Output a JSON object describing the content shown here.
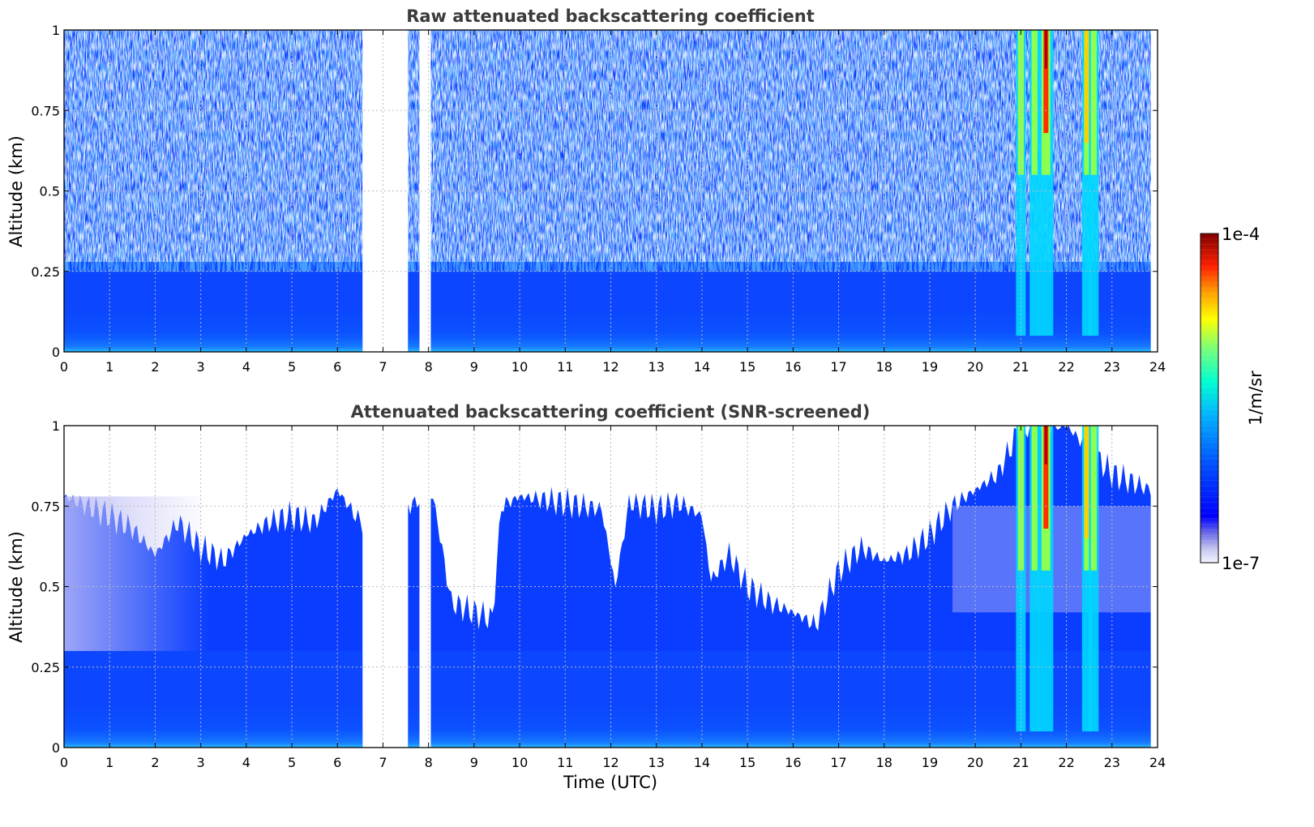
{
  "chart_data": [
    {
      "type": "heatmap",
      "title": "Raw attenuated backscattering coefficient",
      "xlabel": "",
      "ylabel": "Altitude (km)",
      "xlim": [
        0,
        24
      ],
      "ylim": [
        0,
        1
      ],
      "x_ticks": [
        "0",
        "1",
        "2",
        "3",
        "4",
        "5",
        "6",
        "7",
        "8",
        "9",
        "10",
        "11",
        "12",
        "13",
        "14",
        "15",
        "16",
        "17",
        "18",
        "19",
        "20",
        "21",
        "22",
        "23",
        "24"
      ],
      "y_ticks": [
        "0",
        "0.25",
        "0.5",
        "0.75",
        "1"
      ],
      "grid": true,
      "data_gaps": [
        [
          6.55,
          7.55
        ],
        [
          7.8,
          8.05
        ]
      ],
      "high_backscatter_columns_utc": [
        21.0,
        21.3,
        21.55,
        22.45,
        22.6
      ],
      "note_pattern": "noisy low values above ~0.3 km, denser signal near surface"
    },
    {
      "type": "heatmap",
      "title": "Attenuated backscattering coefficient (SNR-screened)",
      "xlabel": "Time (UTC)",
      "ylabel": "Altitude (km)",
      "xlim": [
        0,
        24
      ],
      "ylim": [
        0,
        1
      ],
      "x_ticks": [
        "0",
        "1",
        "2",
        "3",
        "4",
        "5",
        "6",
        "7",
        "8",
        "9",
        "10",
        "11",
        "12",
        "13",
        "14",
        "15",
        "16",
        "17",
        "18",
        "19",
        "20",
        "21",
        "22",
        "23",
        "24"
      ],
      "y_ticks": [
        "0",
        "0.25",
        "0.5",
        "0.75",
        "1"
      ],
      "grid": true,
      "data_gaps": [
        [
          6.55,
          7.55
        ],
        [
          7.8,
          8.05
        ]
      ],
      "high_backscatter_columns_utc": [
        21.0,
        21.3,
        21.55,
        22.45,
        22.6
      ],
      "screened_top_km": [
        [
          0,
          0.78
        ],
        [
          0.5,
          0.75
        ],
        [
          1,
          0.72
        ],
        [
          1.5,
          0.68
        ],
        [
          2,
          0.6
        ],
        [
          2.5,
          0.7
        ],
        [
          3,
          0.62
        ],
        [
          3.5,
          0.58
        ],
        [
          4,
          0.66
        ],
        [
          4.5,
          0.7
        ],
        [
          5,
          0.72
        ],
        [
          5.5,
          0.7
        ],
        [
          6,
          0.8
        ],
        [
          6.5,
          0.7
        ],
        [
          8.1,
          0.78
        ],
        [
          8.5,
          0.45
        ],
        [
          9.0,
          0.42
        ],
        [
          9.4,
          0.4
        ],
        [
          9.6,
          0.75
        ],
        [
          10,
          0.78
        ],
        [
          11,
          0.76
        ],
        [
          11.8,
          0.74
        ],
        [
          12.1,
          0.5
        ],
        [
          12.4,
          0.76
        ],
        [
          13,
          0.74
        ],
        [
          13.5,
          0.76
        ],
        [
          14,
          0.72
        ],
        [
          14.2,
          0.52
        ],
        [
          14.6,
          0.6
        ],
        [
          15,
          0.5
        ],
        [
          15.5,
          0.45
        ],
        [
          16,
          0.42
        ],
        [
          16.5,
          0.38
        ],
        [
          17,
          0.55
        ],
        [
          17.5,
          0.62
        ],
        [
          18,
          0.58
        ],
        [
          18.5,
          0.6
        ],
        [
          19,
          0.66
        ],
        [
          19.5,
          0.75
        ],
        [
          20,
          0.8
        ],
        [
          20.5,
          0.85
        ],
        [
          21,
          1.0
        ],
        [
          22,
          1.0
        ],
        [
          23,
          0.85
        ],
        [
          23.85,
          0.8
        ]
      ]
    }
  ],
  "colorbar": {
    "label": "1/m/sr",
    "max_label": "1e-4",
    "min_label": "1e-7",
    "scale": "log",
    "colormap": [
      "#ffffff",
      "#c8c8f0",
      "#0000ff",
      "#0064ff",
      "#00c8ff",
      "#00ffc8",
      "#64ff64",
      "#ffff00",
      "#ffa000",
      "#ff3000",
      "#c00000",
      "#800000"
    ]
  }
}
